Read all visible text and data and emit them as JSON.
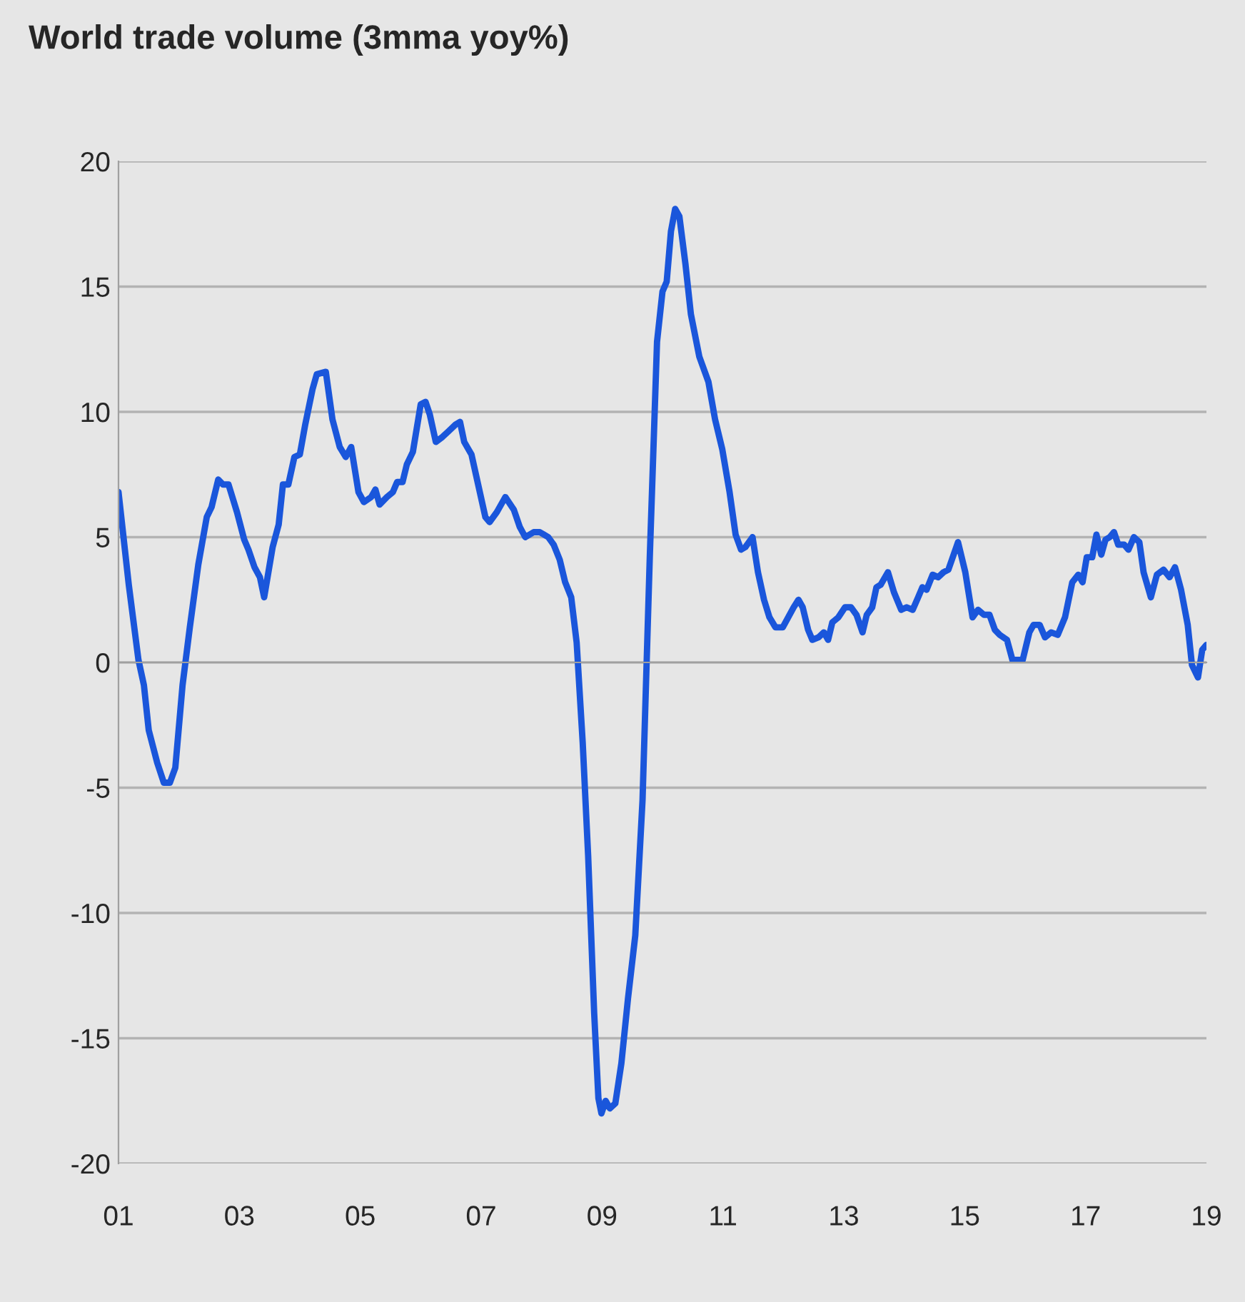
{
  "chart_data": {
    "type": "line",
    "title": "World trade volume (3mma yoy%)",
    "x": [
      2001.0,
      2001.17,
      2001.33,
      2001.42,
      2001.5,
      2001.64,
      2001.75,
      2001.85,
      2001.94,
      2002.06,
      2002.18,
      2002.32,
      2002.46,
      2002.54,
      2002.65,
      2002.73,
      2002.82,
      2002.96,
      2003.08,
      2003.15,
      2003.25,
      2003.34,
      2003.41,
      2003.55,
      2003.65,
      2003.72,
      2003.81,
      2003.91,
      2004.0,
      2004.09,
      2004.21,
      2004.28,
      2004.43,
      2004.54,
      2004.66,
      2004.76,
      2004.85,
      2004.97,
      2005.06,
      2005.18,
      2005.25,
      2005.32,
      2005.44,
      2005.54,
      2005.61,
      2005.7,
      2005.77,
      2005.87,
      2006.0,
      2006.08,
      2006.15,
      2006.25,
      2006.36,
      2006.45,
      2006.58,
      2006.65,
      2006.72,
      2006.84,
      2006.95,
      2007.07,
      2007.14,
      2007.26,
      2007.4,
      2007.54,
      2007.64,
      2007.73,
      2007.87,
      2007.97,
      2008.11,
      2008.2,
      2008.3,
      2008.39,
      2008.49,
      2008.58,
      2008.68,
      2008.77,
      2008.87,
      2008.94,
      2008.99,
      2009.06,
      2009.13,
      2009.22,
      2009.32,
      2009.43,
      2009.55,
      2009.67,
      2009.79,
      2009.91,
      2010.0,
      2010.07,
      2010.14,
      2010.21,
      2010.28,
      2010.38,
      2010.47,
      2010.61,
      2010.76,
      2010.87,
      2010.99,
      2011.11,
      2011.21,
      2011.3,
      2011.37,
      2011.49,
      2011.58,
      2011.68,
      2011.77,
      2011.87,
      2011.99,
      2012.08,
      2012.17,
      2012.25,
      2012.32,
      2012.41,
      2012.48,
      2012.58,
      2012.67,
      2012.74,
      2012.81,
      2012.91,
      2013.02,
      2013.12,
      2013.21,
      2013.31,
      2013.38,
      2013.47,
      2013.54,
      2013.61,
      2013.73,
      2013.83,
      2013.95,
      2014.04,
      2014.14,
      2014.23,
      2014.3,
      2014.37,
      2014.47,
      2014.56,
      2014.65,
      2014.73,
      2014.89,
      2015.01,
      2015.13,
      2015.22,
      2015.32,
      2015.41,
      2015.5,
      2015.58,
      2015.7,
      2015.79,
      2015.96,
      2016.07,
      2016.14,
      2016.24,
      2016.33,
      2016.43,
      2016.54,
      2016.66,
      2016.78,
      2016.88,
      2016.95,
      2017.02,
      2017.11,
      2017.18,
      2017.26,
      2017.33,
      2017.4,
      2017.47,
      2017.54,
      2017.64,
      2017.71,
      2017.8,
      2017.89,
      2017.96,
      2018.08,
      2018.18,
      2018.29,
      2018.39,
      2018.48,
      2018.58,
      2018.69,
      2018.76,
      2018.86,
      2018.93,
      2019.0
    ],
    "series": [
      {
        "color": "#1a56db",
        "values": [
          6.8,
          3.1,
          0.1,
          -0.9,
          -2.7,
          -4.0,
          -4.8,
          -4.8,
          -4.2,
          -0.9,
          1.4,
          3.9,
          5.8,
          6.2,
          7.3,
          7.1,
          7.1,
          6.0,
          4.9,
          4.5,
          3.8,
          3.4,
          2.6,
          4.6,
          5.5,
          7.1,
          7.1,
          8.2,
          8.3,
          9.5,
          10.9,
          11.5,
          11.6,
          9.7,
          8.6,
          8.2,
          8.6,
          6.8,
          6.4,
          6.6,
          6.9,
          6.3,
          6.6,
          6.8,
          7.2,
          7.2,
          7.9,
          8.4,
          10.3,
          10.4,
          9.9,
          8.8,
          9.0,
          9.2,
          9.5,
          9.6,
          8.8,
          8.3,
          7.1,
          5.8,
          5.6,
          6.0,
          6.6,
          6.1,
          5.4,
          5.0,
          5.2,
          5.2,
          5.0,
          4.7,
          4.1,
          3.2,
          2.6,
          0.8,
          -3.2,
          -7.7,
          -14.0,
          -17.4,
          -18.0,
          -17.5,
          -17.8,
          -17.6,
          -16.0,
          -13.4,
          -10.9,
          -5.5,
          4.2,
          12.8,
          14.8,
          15.2,
          17.2,
          18.1,
          17.8,
          15.9,
          13.9,
          12.2,
          11.2,
          9.7,
          8.5,
          6.8,
          5.1,
          4.5,
          4.6,
          5.0,
          3.6,
          2.5,
          1.8,
          1.4,
          1.4,
          1.8,
          2.2,
          2.5,
          2.2,
          1.3,
          0.9,
          1.0,
          1.2,
          0.9,
          1.6,
          1.8,
          2.2,
          2.2,
          1.9,
          1.2,
          1.9,
          2.2,
          3.0,
          3.1,
          3.6,
          2.8,
          2.1,
          2.2,
          2.1,
          2.6,
          3.0,
          2.9,
          3.5,
          3.4,
          3.6,
          3.7,
          4.8,
          3.6,
          1.8,
          2.1,
          1.9,
          1.9,
          1.3,
          1.1,
          0.9,
          0.1,
          0.1,
          1.2,
          1.5,
          1.5,
          1.0,
          1.2,
          1.1,
          1.8,
          3.2,
          3.5,
          3.2,
          4.2,
          4.2,
          5.1,
          4.3,
          4.9,
          5.0,
          5.2,
          4.7,
          4.7,
          4.5,
          5.0,
          4.8,
          3.6,
          2.6,
          3.5,
          3.7,
          3.4,
          3.8,
          2.9,
          1.5,
          -0.1,
          -0.6,
          0.5,
          0.7
        ]
      }
    ],
    "xlim": [
      2001,
      2019
    ],
    "xticks": [
      {
        "value": 2001,
        "label": "01"
      },
      {
        "value": 2003,
        "label": "03"
      },
      {
        "value": 2005,
        "label": "05"
      },
      {
        "value": 2007,
        "label": "07"
      },
      {
        "value": 2009,
        "label": "09"
      },
      {
        "value": 2011,
        "label": "11"
      },
      {
        "value": 2013,
        "label": "13"
      },
      {
        "value": 2015,
        "label": "15"
      },
      {
        "value": 2017,
        "label": "17"
      },
      {
        "value": 2019,
        "label": "19"
      }
    ],
    "ylim": [
      -20,
      20
    ],
    "yticks": [
      -20,
      -15,
      -10,
      -5,
      0,
      5,
      10,
      15,
      20
    ],
    "grid": "y",
    "line_style": "solid",
    "marker": "none"
  }
}
